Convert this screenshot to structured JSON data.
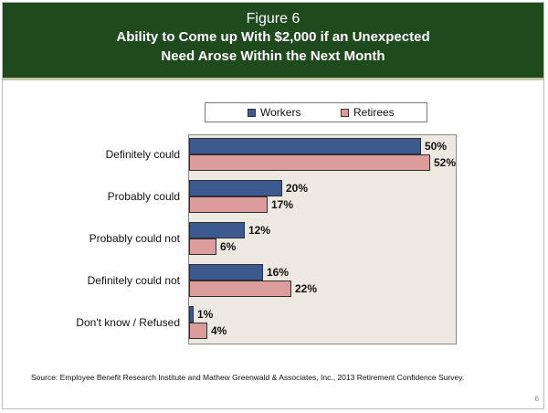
{
  "header": {
    "figure_label": "Figure 6",
    "title_line1": "Ability to Come up With $2,000 if an Unexpected",
    "title_line2": "Need Arose Within the Next Month"
  },
  "colors": {
    "header_bg": "#1e4a1e",
    "workers": "#3c5a8f",
    "retirees": "#dc9c9c",
    "plot_bg": "#eee9e0"
  },
  "chart_data": {
    "type": "bar",
    "orientation": "horizontal",
    "categories": [
      "Definitely could",
      "Probably could",
      "Probably could not",
      "Definitely could not",
      "Don't know / Refused"
    ],
    "series": [
      {
        "name": "Workers",
        "values": [
          50,
          20,
          12,
          16,
          1
        ],
        "labels": [
          "50%",
          "20%",
          "12%",
          "16%",
          "1%"
        ]
      },
      {
        "name": "Retirees",
        "values": [
          52,
          17,
          6,
          22,
          4
        ],
        "labels": [
          "52%",
          "17%",
          "6%",
          "22%",
          "4%"
        ]
      }
    ],
    "xlim": [
      0,
      60
    ],
    "legend_position": "top",
    "grid": false
  },
  "footer": {
    "source": "Source:  Employee Benefit Research Institute and Mathew Greenwald & Associates, Inc., 2013 Retirement Confidence Survey.",
    "page_number": "6"
  }
}
